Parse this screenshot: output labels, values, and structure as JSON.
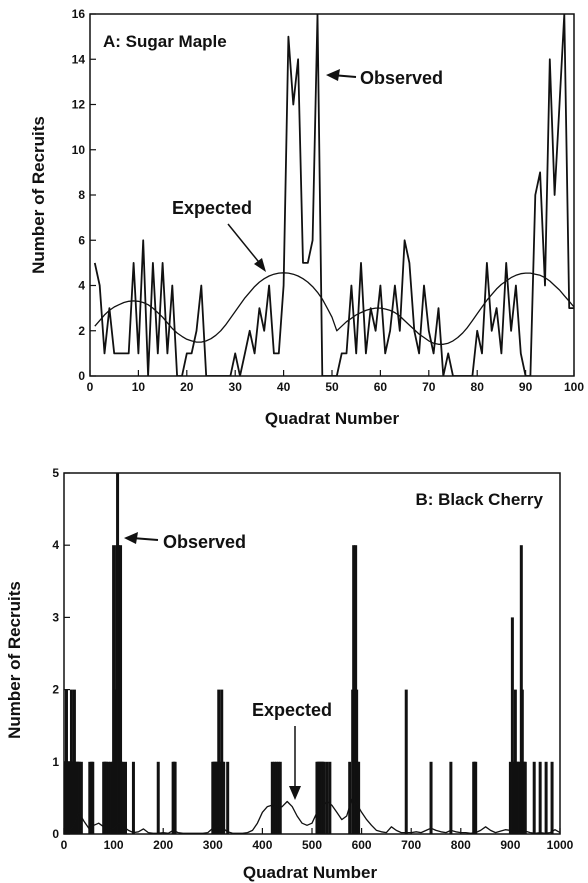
{
  "chart_data": [
    {
      "type": "line",
      "title": "A: Sugar Maple",
      "xlabel": "Quadrat Number",
      "ylabel": "Number of Recruits",
      "xlim": [
        0,
        100
      ],
      "ylim": [
        0,
        16
      ],
      "xticks": [
        0,
        10,
        20,
        30,
        40,
        50,
        60,
        70,
        80,
        90,
        100
      ],
      "yticks": [
        0,
        2,
        4,
        6,
        8,
        10,
        12,
        14,
        16
      ],
      "grid": false,
      "annotations": [
        {
          "text": "Observed",
          "x": 48,
          "y": 13.5
        },
        {
          "text": "Expected",
          "x": 39,
          "y": 4.6
        }
      ],
      "series": [
        {
          "name": "Observed",
          "x": [
            1,
            2,
            3,
            4,
            5,
            6,
            7,
            8,
            9,
            10,
            11,
            12,
            13,
            14,
            15,
            16,
            17,
            18,
            19,
            20,
            21,
            22,
            23,
            24,
            25,
            26,
            27,
            28,
            29,
            30,
            31,
            32,
            33,
            34,
            35,
            36,
            37,
            38,
            39,
            40,
            41,
            42,
            43,
            44,
            45,
            46,
            47,
            48,
            49,
            50,
            51,
            52,
            53,
            54,
            55,
            56,
            57,
            58,
            59,
            60,
            61,
            62,
            63,
            64,
            65,
            66,
            67,
            68,
            69,
            70,
            71,
            72,
            73,
            74,
            75,
            76,
            77,
            78,
            79,
            80,
            81,
            82,
            83,
            84,
            85,
            86,
            87,
            88,
            89,
            90,
            91,
            92,
            93,
            94,
            95,
            96,
            97,
            98,
            99,
            100
          ],
          "y": [
            5,
            4,
            1,
            3,
            1,
            1,
            1,
            1,
            5,
            1,
            6,
            0,
            5,
            1,
            5,
            1,
            4,
            0,
            0,
            1,
            1,
            2,
            4,
            0,
            0,
            0,
            0,
            0,
            0,
            1,
            0,
            1,
            2,
            1,
            3,
            2,
            4,
            1,
            1,
            4,
            15,
            12,
            14,
            5,
            5,
            6,
            16,
            0,
            0,
            0,
            0,
            1,
            1,
            4,
            1,
            5,
            1,
            3,
            2,
            4,
            1,
            2,
            4,
            2,
            6,
            5,
            2,
            1,
            4,
            2,
            1,
            3,
            0,
            1,
            0,
            0,
            0,
            0,
            0,
            2,
            1,
            5,
            2,
            3,
            1,
            5,
            2,
            4,
            1,
            0,
            0,
            8,
            9,
            4,
            14,
            8,
            12,
            16,
            3,
            3
          ]
        },
        {
          "name": "Expected",
          "x": [
            1,
            2,
            3,
            4,
            5,
            6,
            7,
            8,
            9,
            10,
            11,
            12,
            13,
            14,
            15,
            16,
            17,
            18,
            19,
            20,
            21,
            22,
            23,
            24,
            25,
            26,
            27,
            28,
            29,
            30,
            31,
            32,
            33,
            34,
            35,
            36,
            37,
            38,
            39,
            40,
            41,
            42,
            43,
            44,
            45,
            46,
            47,
            48,
            49,
            50,
            51,
            52,
            53,
            54,
            55,
            56,
            57,
            58,
            59,
            60,
            61,
            62,
            63,
            64,
            65,
            66,
            67,
            68,
            69,
            70,
            71,
            72,
            73,
            74,
            75,
            76,
            77,
            78,
            79,
            80,
            81,
            82,
            83,
            84,
            85,
            86,
            87,
            88,
            89,
            90,
            91,
            92,
            93,
            94,
            95,
            96,
            97,
            98,
            99,
            100
          ],
          "y": [
            2.2,
            2.45,
            2.7,
            2.9,
            3.05,
            3.15,
            3.25,
            3.3,
            3.32,
            3.3,
            3.25,
            3.15,
            3.0,
            2.8,
            2.6,
            2.35,
            2.1,
            1.9,
            1.75,
            1.62,
            1.55,
            1.5,
            1.5,
            1.55,
            1.65,
            1.8,
            2.0,
            2.25,
            2.55,
            2.85,
            3.15,
            3.45,
            3.7,
            3.95,
            4.15,
            4.3,
            4.42,
            4.5,
            4.55,
            4.56,
            4.55,
            4.5,
            4.42,
            4.3,
            4.15,
            3.95,
            3.7,
            3.4,
            3.0,
            2.6,
            2.0,
            2.2,
            2.4,
            2.55,
            2.7,
            2.8,
            2.9,
            2.96,
            3.0,
            3.0,
            2.96,
            2.9,
            2.8,
            2.65,
            2.45,
            2.25,
            2.05,
            1.85,
            1.7,
            1.55,
            1.45,
            1.4,
            1.4,
            1.45,
            1.55,
            1.7,
            1.9,
            2.15,
            2.45,
            2.75,
            3.05,
            3.35,
            3.6,
            3.85,
            4.05,
            4.2,
            4.35,
            4.45,
            4.52,
            4.55,
            4.55,
            4.5,
            4.45,
            4.35,
            4.2,
            4.0,
            3.8,
            3.55,
            3.3,
            3.05
          ]
        }
      ]
    },
    {
      "type": "bar",
      "title": "B: Black Cherry",
      "xlabel": "Quadrat Number",
      "ylabel": "Number of Recruits",
      "xlim": [
        0,
        1000
      ],
      "ylim": [
        0,
        5
      ],
      "xticks": [
        0,
        100,
        200,
        300,
        400,
        500,
        600,
        700,
        800,
        900,
        1000
      ],
      "yticks": [
        0,
        1,
        2,
        3,
        4,
        5
      ],
      "grid": false,
      "annotations": [
        {
          "text": "Observed",
          "x": 115,
          "y": 4.2
        },
        {
          "text": "Expected",
          "x": 450,
          "y": 0.5
        }
      ],
      "series": [
        {
          "name": "Observed",
          "x": [
            3,
            5,
            7,
            9,
            11,
            13,
            15,
            17,
            19,
            21,
            23,
            25,
            27,
            29,
            31,
            35,
            52,
            56,
            58,
            80,
            82,
            84,
            86,
            90,
            94,
            98,
            100,
            102,
            104,
            106,
            108,
            110,
            112,
            114,
            116,
            118,
            124,
            140,
            190,
            220,
            222,
            224,
            300,
            302,
            304,
            306,
            308,
            310,
            312,
            314,
            316,
            318,
            320,
            322,
            330,
            420,
            424,
            428,
            432,
            436,
            510,
            512,
            514,
            516,
            518,
            520,
            522,
            524,
            530,
            536,
            576,
            582,
            584,
            586,
            588,
            590,
            592,
            594,
            690,
            740,
            780,
            826,
            828,
            830,
            900,
            904,
            908,
            910,
            912,
            914,
            916,
            918,
            922,
            924,
            926,
            928,
            930,
            948,
            960,
            972,
            984
          ],
          "y": [
            1,
            2,
            1,
            1,
            1,
            1,
            2,
            1,
            1,
            2,
            1,
            1,
            1,
            1,
            1,
            1,
            1,
            1,
            1,
            1,
            1,
            1,
            1,
            1,
            1,
            1,
            4,
            2,
            2,
            4,
            5,
            4,
            3,
            4,
            1,
            1,
            1,
            1,
            1,
            1,
            1,
            1,
            1,
            1,
            1,
            1,
            1,
            1,
            2,
            1,
            1,
            2,
            1,
            1,
            1,
            1,
            1,
            1,
            1,
            1,
            1,
            1,
            1,
            1,
            1,
            1,
            1,
            1,
            1,
            1,
            1,
            2,
            4,
            2,
            4,
            2,
            1,
            1,
            2,
            1,
            1,
            1,
            1,
            1,
            1,
            3,
            1,
            2,
            1,
            1,
            1,
            1,
            4,
            2,
            1,
            1,
            1,
            1,
            1,
            1,
            1
          ]
        },
        {
          "name": "Expected",
          "x": [
            0,
            10,
            20,
            30,
            40,
            50,
            60,
            70,
            80,
            90,
            100,
            110,
            120,
            130,
            140,
            150,
            160,
            170,
            180,
            190,
            200,
            210,
            220,
            230,
            240,
            250,
            260,
            270,
            280,
            290,
            300,
            310,
            320,
            330,
            340,
            350,
            360,
            370,
            380,
            390,
            400,
            410,
            420,
            430,
            440,
            450,
            460,
            470,
            480,
            490,
            500,
            510,
            520,
            530,
            540,
            550,
            560,
            570,
            580,
            590,
            600,
            610,
            620,
            630,
            640,
            650,
            660,
            670,
            680,
            690,
            700,
            710,
            720,
            730,
            740,
            750,
            760,
            770,
            780,
            790,
            800,
            810,
            820,
            830,
            840,
            850,
            860,
            870,
            880,
            890,
            900,
            910,
            920,
            930,
            940,
            950,
            960,
            970,
            980,
            990,
            1000
          ],
          "y": [
            0.02,
            0.03,
            0.12,
            0.3,
            0.18,
            0.08,
            0.12,
            0.15,
            0.1,
            0.05,
            0.08,
            0.15,
            0.1,
            0.05,
            0.02,
            0.03,
            0.07,
            0.02,
            0.01,
            0.01,
            0.02,
            0.01,
            0.05,
            0.02,
            0.01,
            0.01,
            0.01,
            0.01,
            0.01,
            0.02,
            0.08,
            0.12,
            0.08,
            0.03,
            0.01,
            0.01,
            0.01,
            0.02,
            0.05,
            0.15,
            0.3,
            0.38,
            0.4,
            0.35,
            0.38,
            0.45,
            0.38,
            0.25,
            0.15,
            0.12,
            0.15,
            0.3,
            0.38,
            0.45,
            0.4,
            0.3,
            0.2,
            0.25,
            0.48,
            0.42,
            0.3,
            0.2,
            0.12,
            0.05,
            0.03,
            0.02,
            0.1,
            0.05,
            0.02,
            0.02,
            0.02,
            0.03,
            0.02,
            0.05,
            0.08,
            0.05,
            0.03,
            0.02,
            0.05,
            0.03,
            0.02,
            0.02,
            0.01,
            0.02,
            0.05,
            0.1,
            0.05,
            0.02,
            0.04,
            0.06,
            0.05,
            0.03,
            0.02,
            0.04,
            0.02,
            0.01,
            0.02,
            0.01,
            0.02,
            0.06,
            0.02
          ]
        }
      ]
    }
  ]
}
